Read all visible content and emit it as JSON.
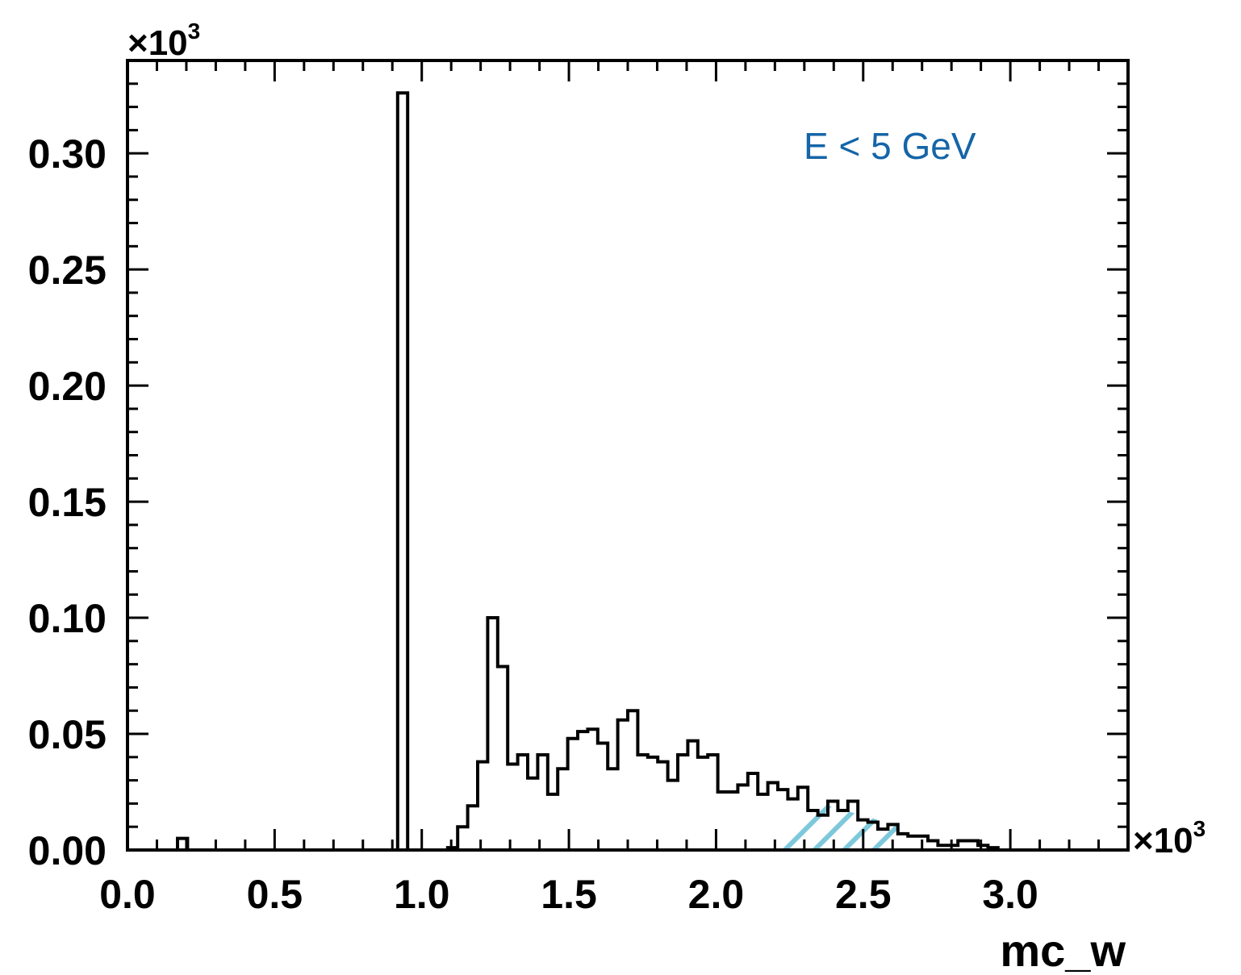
{
  "chart_data": {
    "type": "bar",
    "style": "step-histogram",
    "xlabel": "mc_w",
    "ylabel": "",
    "x_multiplier": "×10",
    "x_multiplier_exp": "3",
    "y_multiplier": "×10",
    "y_multiplier_exp": "3",
    "xlim": [
      0.0,
      3.4
    ],
    "ylim": [
      0.0,
      0.34
    ],
    "x_ticks": [
      "0.0",
      "0.5",
      "1.0",
      "1.5",
      "2.0",
      "2.5",
      "3.0"
    ],
    "x_tick_values": [
      0.0,
      0.5,
      1.0,
      1.5,
      2.0,
      2.5,
      3.0
    ],
    "y_ticks": [
      "0.00",
      "0.05",
      "0.10",
      "0.15",
      "0.20",
      "0.25",
      "0.30"
    ],
    "y_tick_values": [
      0.0,
      0.05,
      0.1,
      0.15,
      0.2,
      0.25,
      0.3
    ],
    "bin_edges": [
      0.0,
      3.4,
      100
    ],
    "series": [
      {
        "values": [
          0,
          0,
          0,
          0,
          0,
          0.005,
          0,
          0,
          0,
          0,
          0,
          0,
          0,
          0,
          0,
          0,
          0,
          0,
          0,
          0,
          0,
          0,
          0,
          0,
          0,
          0,
          0,
          0.326,
          0,
          0,
          0,
          0,
          0.001,
          0.01,
          0.019,
          0.038,
          0.1,
          0.079,
          0.037,
          0.041,
          0.031,
          0.041,
          0.024,
          0.035,
          0.048,
          0.051,
          0.052,
          0.046,
          0.035,
          0.056,
          0.06,
          0.041,
          0.04,
          0.038,
          0.03,
          0.041,
          0.047,
          0.04,
          0.041,
          0.025,
          0.025,
          0.028,
          0.033,
          0.024,
          0.029,
          0.026,
          0.022,
          0.027,
          0.017,
          0.015,
          0.021,
          0.017,
          0.021,
          0.013,
          0.012,
          0.009,
          0.011,
          0.007,
          0.006,
          0.006,
          0.004,
          0.002,
          0.002,
          0.004,
          0.004,
          0.002,
          0.001,
          0,
          0,
          0,
          0,
          0,
          0,
          0,
          0,
          0,
          0,
          0,
          0,
          0
        ],
        "color": "#000000"
      }
    ],
    "hatch_region": {
      "x_start": 2.15,
      "x_end": 2.62,
      "color": "#7ec8dc"
    },
    "annotation": {
      "text": "E < 5 GeV",
      "color": "#1565a8",
      "placement": "top-right"
    },
    "grid": false,
    "legend": "none"
  }
}
